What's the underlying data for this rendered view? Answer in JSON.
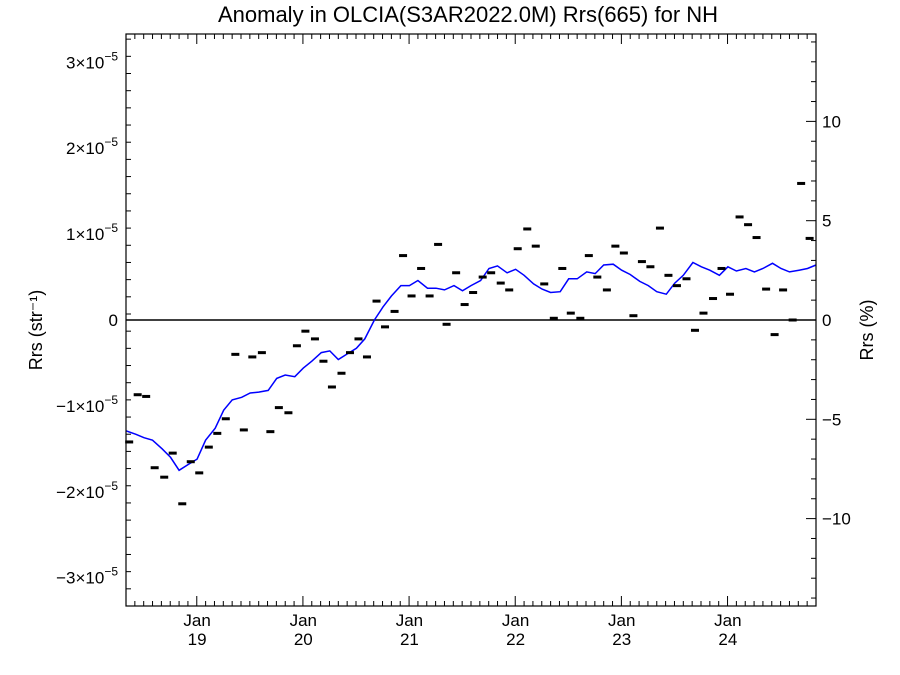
{
  "chart_data": {
    "type": "scatter",
    "title": "Anomaly in OLCIA(S3AR2022.0M) Rrs(665) for NH",
    "ylabel": "Rrs (str⁻¹)",
    "y2label": "Rrs (%)",
    "xlim": [
      2018.33,
      2024.83
    ],
    "ylim": [
      -3.33e-05,
      3.33e-05
    ],
    "y2lim": [
      -14.4,
      14.4
    ],
    "x_ticks": [
      {
        "x": 2019.0,
        "month": "Jan",
        "year": "19"
      },
      {
        "x": 2020.0,
        "month": "Jan",
        "year": "20"
      },
      {
        "x": 2021.0,
        "month": "Jan",
        "year": "21"
      },
      {
        "x": 2022.0,
        "month": "Jan",
        "year": "22"
      },
      {
        "x": 2023.0,
        "month": "Jan",
        "year": "23"
      },
      {
        "x": 2024.0,
        "month": "Jan",
        "year": "24"
      }
    ],
    "y_ticks": [
      {
        "value": 3e-05,
        "mantissa": "3×10",
        "exp": "−5"
      },
      {
        "value": 2e-05,
        "mantissa": "2×10",
        "exp": "−5"
      },
      {
        "value": 1e-05,
        "mantissa": "1×10",
        "exp": "−5"
      },
      {
        "value": 0,
        "mantissa": "0",
        "exp": ""
      },
      {
        "value": -1e-05,
        "mantissa": "−1×10",
        "exp": "−5"
      },
      {
        "value": -2e-05,
        "mantissa": "−2×10",
        "exp": "−5"
      },
      {
        "value": -3e-05,
        "mantissa": "−3×10",
        "exp": "−5"
      }
    ],
    "y2_ticks": [
      {
        "value": 10,
        "label": "10"
      },
      {
        "value": 5,
        "label": "5"
      },
      {
        "value": 0,
        "label": "0"
      },
      {
        "value": -5,
        "label": "−5"
      },
      {
        "value": -10,
        "label": "−10"
      }
    ],
    "zero_line": true,
    "series": [
      {
        "kind": "points",
        "color": "#000000",
        "x": [
          2018.36,
          2018.44,
          2018.52,
          2018.6,
          2018.69,
          2018.77,
          2018.86,
          2018.94,
          2019.02,
          2019.11,
          2019.19,
          2019.27,
          2019.36,
          2019.44,
          2019.52,
          2019.61,
          2019.69,
          2019.77,
          2019.86,
          2019.94,
          2020.02,
          2020.11,
          2020.19,
          2020.27,
          2020.36,
          2020.44,
          2020.52,
          2020.6,
          2020.69,
          2020.77,
          2020.86,
          2020.94,
          2021.02,
          2021.11,
          2021.19,
          2021.27,
          2021.35,
          2021.44,
          2021.52,
          2021.6,
          2021.69,
          2021.77,
          2021.86,
          2021.94,
          2022.02,
          2022.11,
          2022.19,
          2022.27,
          2022.36,
          2022.44,
          2022.52,
          2022.61,
          2022.69,
          2022.77,
          2022.86,
          2022.94,
          2023.02,
          2023.11,
          2023.19,
          2023.27,
          2023.36,
          2023.44,
          2023.52,
          2023.61,
          2023.69,
          2023.77,
          2023.86,
          2023.94,
          2024.02,
          2024.11,
          2024.19,
          2024.27,
          2024.36,
          2024.44,
          2024.52,
          2024.61,
          2024.69,
          2024.77
        ],
        "y": [
          -1.42e-05,
          -8.7e-06,
          -8.9e-06,
          -1.72e-05,
          -1.83e-05,
          -1.55e-05,
          -2.14e-05,
          -1.65e-05,
          -1.78e-05,
          -1.48e-05,
          -1.32e-05,
          -1.15e-05,
          -4e-06,
          -1.28e-05,
          -4.3e-06,
          -3.8e-06,
          -1.3e-05,
          -1.02e-05,
          -1.08e-05,
          -3e-06,
          -1.3e-06,
          -2.2e-06,
          -4.8e-06,
          -7.8e-06,
          -6.2e-06,
          -3.8e-06,
          -2.2e-06,
          -4.3e-06,
          2.2e-06,
          -8e-07,
          1e-06,
          7.5e-06,
          2.8e-06,
          6e-06,
          2.8e-06,
          8.8e-06,
          -5e-07,
          5.5e-06,
          1.8e-06,
          3.2e-06,
          5e-06,
          5.5e-06,
          4.3e-06,
          3.5e-06,
          8.3e-06,
          1.06e-05,
          8.6e-06,
          4.2e-06,
          2e-07,
          6e-06,
          8e-07,
          2e-07,
          7.5e-06,
          5e-06,
          3.5e-06,
          8.6e-06,
          7.8e-06,
          5e-07,
          6.8e-06,
          6.2e-06,
          1.07e-05,
          5.2e-06,
          4e-06,
          4.8e-06,
          -1.2e-06,
          8e-07,
          2.5e-06,
          6e-06,
          3e-06,
          1.2e-05,
          1.11e-05,
          9.6e-06,
          3.6e-06,
          -1.7e-06,
          3.5e-06,
          0.0,
          1.59e-05,
          9.5e-06
        ]
      },
      {
        "kind": "line",
        "color": "#0000ff",
        "x": [
          2018.33,
          2018.42,
          2018.5,
          2018.58,
          2018.67,
          2018.75,
          2018.83,
          2018.92,
          2019.0,
          2019.08,
          2019.17,
          2019.25,
          2019.33,
          2019.42,
          2019.5,
          2019.58,
          2019.67,
          2019.75,
          2019.83,
          2019.92,
          2020.0,
          2020.08,
          2020.17,
          2020.25,
          2020.33,
          2020.42,
          2020.5,
          2020.58,
          2020.67,
          2020.75,
          2020.83,
          2020.92,
          2021.0,
          2021.08,
          2021.17,
          2021.25,
          2021.33,
          2021.42,
          2021.5,
          2021.58,
          2021.67,
          2021.75,
          2021.83,
          2021.92,
          2022.0,
          2022.08,
          2022.17,
          2022.25,
          2022.33,
          2022.42,
          2022.5,
          2022.58,
          2022.67,
          2022.75,
          2022.83,
          2022.92,
          2023.0,
          2023.08,
          2023.17,
          2023.25,
          2023.33,
          2023.42,
          2023.5,
          2023.58,
          2023.67,
          2023.75,
          2023.83,
          2023.92,
          2024.0,
          2024.08,
          2024.17,
          2024.25,
          2024.33,
          2024.42,
          2024.5,
          2024.58,
          2024.67,
          2024.75,
          2024.83
        ],
        "y": [
          -1.29e-05,
          -1.33e-05,
          -1.37e-05,
          -1.4e-05,
          -1.5e-05,
          -1.6e-05,
          -1.75e-05,
          -1.68e-05,
          -1.62e-05,
          -1.4e-05,
          -1.26e-05,
          -1.05e-05,
          -9.3e-06,
          -9e-06,
          -8.5e-06,
          -8.4e-06,
          -8.2e-06,
          -6.8e-06,
          -6.4e-06,
          -6.6e-06,
          -5.6e-06,
          -4.8e-06,
          -3.8e-06,
          -3.6e-06,
          -4.6e-06,
          -3.9e-06,
          -3.3e-06,
          -2.2e-06,
          0.0,
          1.5e-06,
          2.8e-06,
          4e-06,
          4e-06,
          4.6e-06,
          3.7e-06,
          3.7e-06,
          3.5e-06,
          4e-06,
          3.4e-06,
          4e-06,
          4.6e-06,
          6e-06,
          6.3e-06,
          5.5e-06,
          5.9e-06,
          5.2e-06,
          4.2e-06,
          3.6e-06,
          3.2e-06,
          3.3e-06,
          4.8e-06,
          4.8e-06,
          5.6e-06,
          5.4e-06,
          6.4e-06,
          6.5e-06,
          5.8e-06,
          5.3e-06,
          4.5e-06,
          4e-06,
          3.3e-06,
          3e-06,
          4.3e-06,
          5.2e-06,
          6.7e-06,
          6.2e-06,
          5.8e-06,
          5.2e-06,
          6.2e-06,
          5.7e-06,
          6e-06,
          5.6e-06,
          6e-06,
          6.6e-06,
          6e-06,
          5.6e-06,
          5.8e-06,
          6e-06,
          6.4e-06
        ]
      }
    ]
  }
}
